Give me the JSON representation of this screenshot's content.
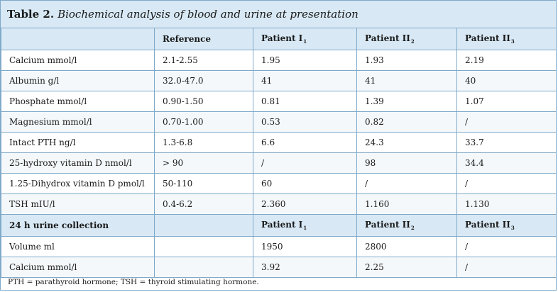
{
  "title": {
    "label": "Table 2.",
    "text": "Biochemical analysis of blood and urine at presentation"
  },
  "blood_header": {
    "c0": "",
    "reference": "Reference",
    "p1": {
      "main": "Patient I",
      "sub": "1"
    },
    "p2": {
      "main": "Patient II",
      "sub": "2"
    },
    "p3": {
      "main": "Patient II",
      "sub": "3"
    }
  },
  "blood_rows": [
    {
      "name": "Calcium mmol/l",
      "ref": "2.1-2.55",
      "p1": "1.95",
      "p2": "1.93",
      "p3": "2.19"
    },
    {
      "name": "Albumin g/l",
      "ref": "32.0-47.0",
      "p1": "41",
      "p2": "41",
      "p3": "40"
    },
    {
      "name": "Phosphate mmol/l",
      "ref": "0.90-1.50",
      "p1": "0.81",
      "p2": "1.39",
      "p3": "1.07"
    },
    {
      "name": "Magnesium mmol/l",
      "ref": "0.70-1.00",
      "p1": "0.53",
      "p2": "0.82",
      "p3": "/"
    },
    {
      "name": "Intact PTH ng/l",
      "ref": "1.3-6.8",
      "p1": "6.6",
      "p2": "24.3",
      "p3": "33.7"
    },
    {
      "name": "25-hydroxy vitamin D nmol/l",
      "ref": "> 90",
      "p1": "/",
      "p2": "98",
      "p3": "34.4"
    },
    {
      "name": "1.25-Dihydrox vitamin D pmol/l",
      "ref": "50-110",
      "p1": "60",
      "p2": "/",
      "p3": "/"
    },
    {
      "name": "TSH mIU/l",
      "ref": "0.4-6.2",
      "p1": "2.360",
      "p2": "1.160",
      "p3": "1.130"
    }
  ],
  "urine_header": {
    "c0": "24 h urine collection",
    "reference": "",
    "p1": {
      "main": "Patient I",
      "sub": "1"
    },
    "p2": {
      "main": "Patient II",
      "sub": "2"
    },
    "p3": {
      "main": "Patient II",
      "sub": "3"
    }
  },
  "urine_rows": [
    {
      "name": "Volume ml",
      "ref": "",
      "p1": "1950",
      "p2": "2800",
      "p3": "/"
    },
    {
      "name": "Calcium mmol/l",
      "ref": "",
      "p1": "3.92",
      "p2": "2.25",
      "p3": "/"
    }
  ],
  "footnote": "PTH = parathyroid hormone; TSH = thyroid stimulating hormone."
}
